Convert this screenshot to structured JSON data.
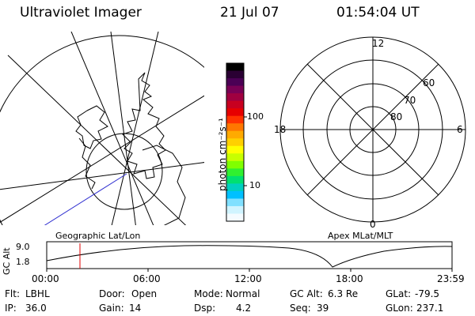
{
  "header": {
    "title": "Ultraviolet Imager",
    "date": "21 Jul 07",
    "time": "01:54:04 UT"
  },
  "colorbar": {
    "label": "photon cm⁻²s⁻¹",
    "ticks": [
      "100",
      "10"
    ],
    "colors": [
      "#000000",
      "#2a0033",
      "#4b0055",
      "#7a0055",
      "#a00040",
      "#c80020",
      "#e60000",
      "#ff3300",
      "#ff7700",
      "#ffaa00",
      "#ffd000",
      "#ffff00",
      "#c8ff00",
      "#80ff00",
      "#30f030",
      "#00e070",
      "#00d0c0",
      "#00c0ff",
      "#80e0ff",
      "#d0f4ff",
      "#f4fbff"
    ]
  },
  "polar_plot": {
    "mlt_labels": {
      "top": "12",
      "left": "18",
      "right": "6",
      "bottom": "0"
    },
    "lat_labels": [
      "60",
      "70",
      "80"
    ]
  },
  "timeline": {
    "ylabel": "GC Alt",
    "yticks": [
      "9.0",
      "1.8"
    ],
    "left_label": "Geographic Lat/Lon",
    "right_label": "Apex MLat/MLT",
    "xticks": [
      "00:00",
      "06:00",
      "12:00",
      "18:00",
      "23:59"
    ]
  },
  "info": {
    "row1": [
      {
        "label": "Flt:",
        "value": "LBHL"
      },
      {
        "label": "Door:",
        "value": "Open"
      },
      {
        "label": "Mode:",
        "value": "Normal"
      },
      {
        "label": "GC Alt:",
        "value": "6.3 Re"
      },
      {
        "label": "GLat:",
        "value": "-79.5"
      }
    ],
    "row2": [
      {
        "label": "IP:",
        "value": "36.0"
      },
      {
        "label": "Gain:",
        "value": "14"
      },
      {
        "label": "Dsp:",
        "value": "4.2"
      },
      {
        "label": "Seq:",
        "value": "39"
      },
      {
        "label": "GLon:",
        "value": "237.1"
      }
    ]
  }
}
